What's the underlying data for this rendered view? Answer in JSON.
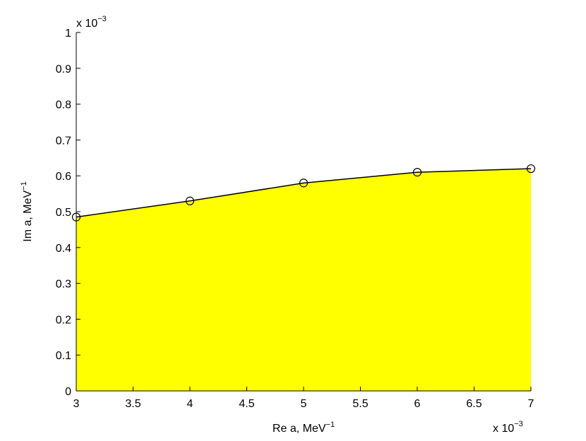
{
  "chart_data": {
    "type": "area",
    "x": [
      3,
      4,
      5,
      6,
      7
    ],
    "y": [
      0.485,
      0.53,
      0.58,
      0.61,
      0.62
    ],
    "x_scale": "x 10^-3",
    "y_scale": "x 10^-3",
    "xlim": [
      3,
      7
    ],
    "ylim": [
      0,
      1
    ],
    "x_ticks": [
      "3",
      "3.5",
      "4",
      "4.5",
      "5",
      "5.5",
      "6",
      "6.5",
      "7"
    ],
    "y_ticks": [
      "0",
      "0.1",
      "0.2",
      "0.3",
      "0.4",
      "0.5",
      "0.6",
      "0.7",
      "0.8",
      "0.9",
      "1"
    ],
    "xlabel": "Re a, MeV",
    "xlabel_sup": "−1",
    "ylabel": "Im a, MeV",
    "ylabel_sup": "−1",
    "x_exponent_prefix": "x 10",
    "x_exponent": "−3",
    "y_exponent_prefix": "x 10",
    "y_exponent": "−3",
    "fill_color": "#ffff00",
    "line_color": "#000000",
    "marker": "circle",
    "grid": false
  }
}
